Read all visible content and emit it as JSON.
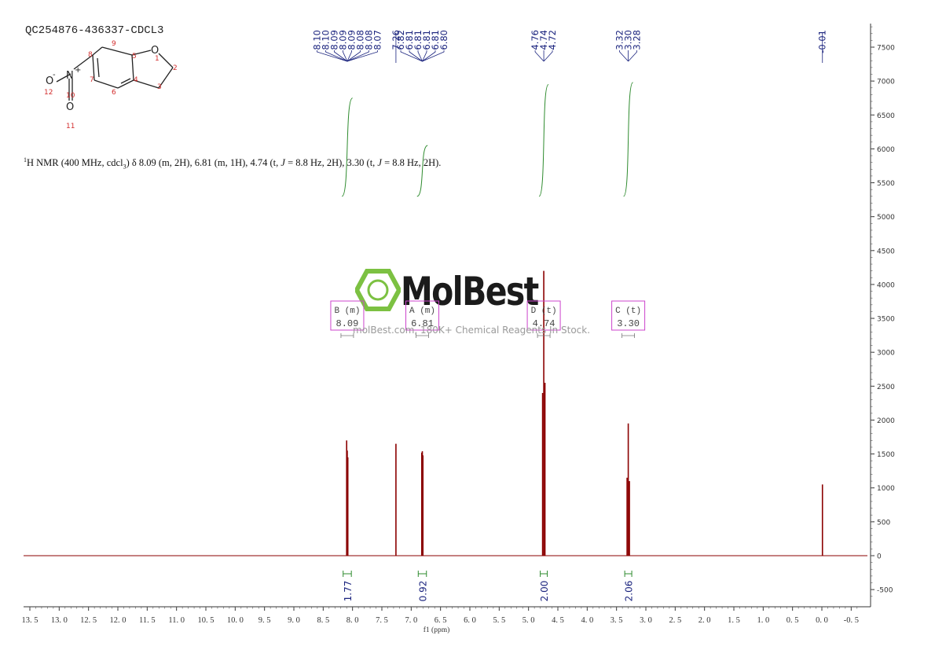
{
  "title": "QC254876-436337-CDCL3",
  "description": {
    "nucleus_sup": "1",
    "text1": "H NMR (400 MHz, cdcl",
    "sub": "3",
    "text2": ") δ 8.09 (m, 2H), 6.81 (m, 1H), 4.74 (t, ",
    "j1": "J",
    "text3": " = 8.8 Hz, 2H), 3.30 (t, ",
    "j2": "J",
    "text4": " = 8.8 Hz, 2H)."
  },
  "watermark": {
    "brand": "MolBest",
    "tagline": "molBest.com, 180K+ Chemical Reagents In Stock."
  },
  "structure": {
    "atoms": {
      "O1": "O",
      "N": "N",
      "N_charge": "+",
      "O_minus": "O",
      "minus": "-",
      "O_double": "O"
    },
    "numbers": [
      "1",
      "2",
      "3",
      "4",
      "5",
      "6",
      "7",
      "8",
      "9",
      "10",
      "11",
      "12"
    ]
  },
  "chart_data": {
    "type": "line",
    "xlabel": "f1 (ppm)",
    "xlim": [
      13.5,
      -0.7
    ],
    "ylim": [
      -650,
      7800
    ],
    "x_ticks": [
      "13.5",
      "13.0",
      "12.5",
      "12.0",
      "11.5",
      "11.0",
      "10.5",
      "10.0",
      "9.5",
      "9.0",
      "8.5",
      "8.0",
      "7.5",
      "7.0",
      "6.5",
      "6.0",
      "5.5",
      "5.0",
      "4.5",
      "4.0",
      "3.5",
      "3.0",
      "2.5",
      "2.0",
      "1.5",
      "1.0",
      "0.5",
      "0.0",
      "-0.5"
    ],
    "y_ticks": [
      "7500",
      "7000",
      "6500",
      "6000",
      "5500",
      "5000",
      "4500",
      "4000",
      "3500",
      "3000",
      "2500",
      "2000",
      "1500",
      "1000",
      "500",
      "0",
      "-500"
    ],
    "peaks": [
      {
        "ppm": 8.1,
        "height": 1700
      },
      {
        "ppm": 8.09,
        "height": 1550
      },
      {
        "ppm": 8.08,
        "height": 1450
      },
      {
        "ppm": 7.26,
        "height": 1650
      },
      {
        "ppm": 6.82,
        "height": 1520
      },
      {
        "ppm": 6.81,
        "height": 1540
      },
      {
        "ppm": 6.8,
        "height": 1480
      },
      {
        "ppm": 4.76,
        "height": 2400
      },
      {
        "ppm": 4.74,
        "height": 4200
      },
      {
        "ppm": 4.72,
        "height": 2550
      },
      {
        "ppm": 3.32,
        "height": 1150
      },
      {
        "ppm": 3.3,
        "height": 1950
      },
      {
        "ppm": 3.28,
        "height": 1100
      },
      {
        "ppm": -0.01,
        "height": 1050
      }
    ],
    "peak_label_groups": [
      {
        "labels": [
          "8.10",
          "8.10",
          "8.09",
          "8.09",
          "8.09",
          "8.08",
          "8.08",
          "8.07"
        ],
        "center": 8.09
      },
      {
        "labels": [
          "7.26"
        ],
        "center": 7.26
      },
      {
        "labels": [
          "6.82",
          "6.81",
          "6.81",
          "6.81",
          "6.81",
          "6.80"
        ],
        "center": 6.81
      },
      {
        "labels": [
          "4.76",
          "4.74",
          "4.72"
        ],
        "center": 4.74
      },
      {
        "labels": [
          "3.32",
          "3.30",
          "3.28"
        ],
        "center": 3.3
      },
      {
        "labels": [
          "-0.01"
        ],
        "center": -0.01
      }
    ],
    "integrals": [
      {
        "from": 8.16,
        "to": 8.02,
        "value": "1.77"
      },
      {
        "from": 6.88,
        "to": 6.74,
        "value": "0.92"
      },
      {
        "from": 4.8,
        "to": 4.68,
        "value": "2.00"
      },
      {
        "from": 3.36,
        "to": 3.24,
        "value": "2.06"
      }
    ],
    "integral_curves": [
      {
        "from": 8.14,
        "to": 8.04,
        "y_start": 5300,
        "y_end": 6750
      },
      {
        "from": 6.86,
        "to": 6.76,
        "y_start": 5300,
        "y_end": 6050
      },
      {
        "from": 4.78,
        "to": 4.7,
        "y_start": 5300,
        "y_end": 6950
      },
      {
        "from": 3.34,
        "to": 3.26,
        "y_start": 5300,
        "y_end": 6980
      }
    ],
    "multiplets": [
      {
        "letter": "B",
        "mult": "(m)",
        "shift": "8.09",
        "ppm": 8.09
      },
      {
        "letter": "A",
        "mult": "(m)",
        "shift": "6.81",
        "ppm": 6.81
      },
      {
        "letter": "D",
        "mult": "(t)",
        "shift": "4.74",
        "ppm": 4.74
      },
      {
        "letter": "C",
        "mult": "(t)",
        "shift": "3.30",
        "ppm": 3.3
      }
    ],
    "colors": {
      "spectrum": "#8b0000",
      "integral": "#2e8b2e",
      "label": "#1a237e",
      "box": "#cc44cc",
      "brand_logo": "#7cc142"
    }
  }
}
